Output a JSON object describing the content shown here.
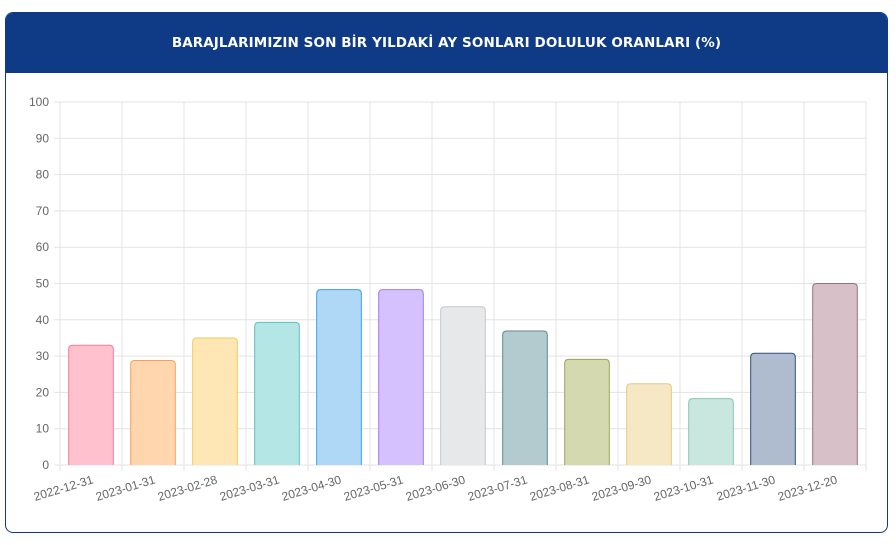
{
  "header": {
    "title": "BARAJLARIMIZIN SON BİR YILDAKİ AY SONLARI DOLULUK ORANLARI (%)"
  },
  "chart_data": {
    "type": "bar",
    "title": "BARAJLARIMIZIN SON BİR YILDAKİ AY SONLARI DOLULUK ORANLARI (%)",
    "categories": [
      "2022-12-31",
      "2023-01-31",
      "2023-02-28",
      "2023-03-31",
      "2023-04-30",
      "2023-05-31",
      "2023-06-30",
      "2023-07-31",
      "2023-08-31",
      "2023-09-30",
      "2023-10-31",
      "2023-11-30",
      "2023-12-20"
    ],
    "values": [
      33.0,
      28.8,
      35.0,
      39.3,
      48.3,
      48.3,
      43.6,
      36.9,
      29.1,
      22.4,
      18.3,
      30.8,
      50.0
    ],
    "ylim": [
      0,
      100
    ],
    "yticks": [
      0,
      10,
      20,
      30,
      40,
      50,
      60,
      70,
      80,
      90,
      100
    ],
    "grid": true,
    "xlabel": "",
    "ylabel": "",
    "colors": {
      "fill": [
        "#ffc1ce",
        "#ffd6ae",
        "#fee7b4",
        "#b5e6e6",
        "#afd8f7",
        "#d5c1fe",
        "#e7e8ea",
        "#b3cbcf",
        "#d5d9af",
        "#f6e8c4",
        "#c9e7de",
        "#afbbce",
        "#d7c0c7"
      ],
      "stroke": [
        "#f67d98",
        "#f4a25b",
        "#f6c85b",
        "#5ebfbf",
        "#3b9ee6",
        "#a07ee9",
        "#c5c7cb",
        "#5d8a91",
        "#9aa45a",
        "#e3c985",
        "#89c6b4",
        "#334f7c",
        "#9c6f7c"
      ],
      "grid": "#e3e3e3",
      "header": "#0f3a86"
    }
  }
}
